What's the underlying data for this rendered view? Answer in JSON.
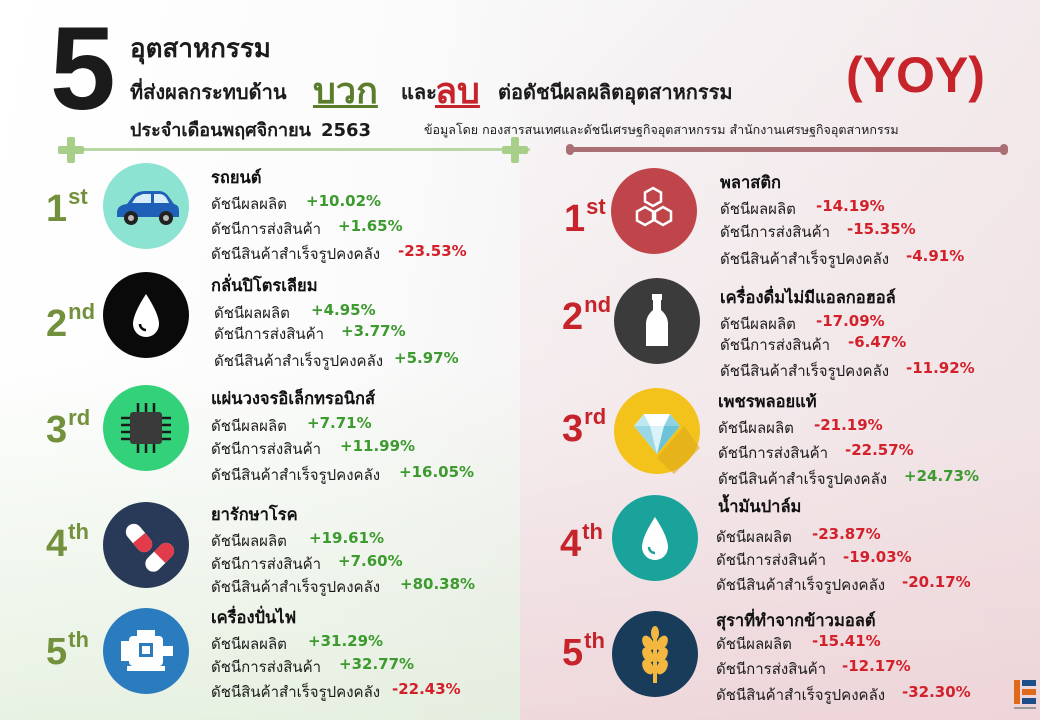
{
  "header": {
    "number": "5",
    "line1": "อุตสาหกรรม",
    "line2_start": "ที่ส่งผลกระทบด้าน",
    "positive": "บวก",
    "and": "และ",
    "negative": "ลบ",
    "line2_end": "ต่อดัชนีผลผลิตอุตสาหกรรม",
    "yoy": "(YOY)",
    "line3": "ประจำเดือนพฤศจิกายน",
    "year": "2563",
    "source": "ข้อมูลโดย กองสารสนเทศและดัชนีเศรษฐกิจอุตสาหกรรม สำนักงานเศรษฐกิจอุตสาหกรรม"
  },
  "labels": {
    "production": "ดัชนีผลผลิต",
    "shipment": "ดัชนีการส่งสินค้า",
    "inventory": "ดัชนีสินค้าสำเร็จรูปคงคลัง"
  },
  "positive_list": [
    {
      "rank": "1",
      "suffix": "st",
      "name": "รถยนต์",
      "icon": "car-icon",
      "circle_color": "#8ce3d2",
      "production": "+10.02%",
      "shipment": "+1.65%",
      "inventory": "-23.53%"
    },
    {
      "rank": "2",
      "suffix": "nd",
      "name": "กลั่นปิโตรเลียม",
      "icon": "oil-drop-icon",
      "circle_color": "#0a0a0a",
      "production": "+4.95%",
      "shipment": "+3.77%",
      "inventory": "+5.97%"
    },
    {
      "rank": "3",
      "suffix": "rd",
      "name": "แผ่นวงจรอิเล็กทรอนิกส์",
      "icon": "microchip-icon",
      "circle_color": "#33d17a",
      "production": "+7.71%",
      "shipment": "+11.99%",
      "inventory": "+16.05%"
    },
    {
      "rank": "4",
      "suffix": "th",
      "name": "ยารักษาโรค",
      "icon": "pills-icon",
      "circle_color": "#283a57",
      "production": "+19.61%",
      "shipment": "+7.60%",
      "inventory": "+80.38%"
    },
    {
      "rank": "5",
      "suffix": "th",
      "name": "เครื่องปั่นไฟ",
      "icon": "generator-icon",
      "circle_color": "#2b7cbf",
      "production": "+31.29%",
      "shipment": "+32.77%",
      "inventory": "-22.43%"
    }
  ],
  "negative_list": [
    {
      "rank": "1",
      "suffix": "st",
      "name": "พลาสติก",
      "icon": "plastic-hexagon-icon",
      "circle_color": "#c0454a",
      "production": "-14.19%",
      "shipment": "-15.35%",
      "inventory": "-4.91%"
    },
    {
      "rank": "2",
      "suffix": "nd",
      "name": "เครื่องดื่มไม่มีแอลกอฮอล์",
      "icon": "bottle-icon",
      "circle_color": "#3b3b3b",
      "production": "-17.09%",
      "shipment": "-6.47%",
      "inventory": "-11.92%"
    },
    {
      "rank": "3",
      "suffix": "rd",
      "name": "เพชรพลอยแท้",
      "icon": "diamond-icon",
      "circle_color": "#f3c21b",
      "production": "-21.19%",
      "shipment": "-22.57%",
      "inventory": "+24.73%"
    },
    {
      "rank": "4",
      "suffix": "th",
      "name": "น้ำมันปาล์ม",
      "icon": "palm-oil-drop-icon",
      "circle_color": "#1aa39a",
      "production": "-23.87%",
      "shipment": "-19.03%",
      "inventory": "-20.17%"
    },
    {
      "rank": "5",
      "suffix": "th",
      "name": "สุราที่ทำจากข้าวมอลต์",
      "icon": "wheat-icon",
      "circle_color": "#183c59",
      "production": "-15.41%",
      "shipment": "-12.17%",
      "inventory": "-32.30%"
    }
  ]
}
